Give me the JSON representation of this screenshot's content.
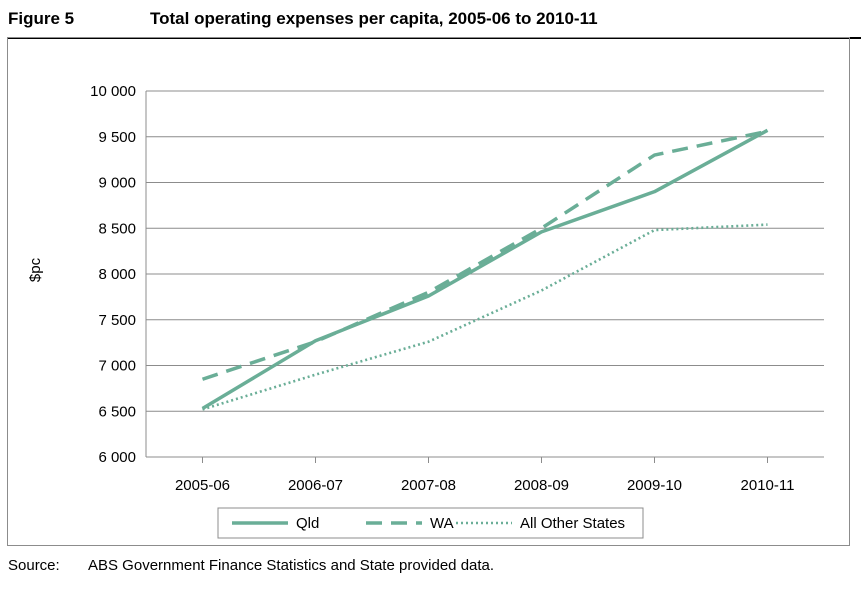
{
  "figure": {
    "label": "Figure 5",
    "title": "Total operating expenses per capita, 2005-06 to 2010-11"
  },
  "source": {
    "label": "Source:",
    "text": "ABS Government Finance Statistics and State provided data."
  },
  "colors": {
    "series": "#6aae97",
    "grid": "#8c8c8c",
    "axis": "#8c8c8c"
  },
  "chart_data": {
    "type": "line",
    "title": "Total operating expenses per capita, 2005-06 to 2010-11",
    "xlabel": "",
    "ylabel": "$pc",
    "categories": [
      "2005-06",
      "2006-07",
      "2007-08",
      "2008-09",
      "2009-10",
      "2010-11"
    ],
    "ylim": [
      6000,
      10000
    ],
    "yticks": [
      6000,
      6500,
      7000,
      7500,
      8000,
      8500,
      9000,
      9500,
      10000
    ],
    "ytick_labels": [
      "6 000",
      "6 500",
      "7 000",
      "7 500",
      "8 000",
      "8 500",
      "9 000",
      "9 500",
      "10 000"
    ],
    "grid": true,
    "legend": "bottom",
    "series": [
      {
        "name": "Qld",
        "style": "solid",
        "values": [
          6530,
          7270,
          7760,
          8460,
          8900,
          9570
        ]
      },
      {
        "name": "WA",
        "style": "dashed",
        "values": [
          6850,
          7260,
          7800,
          8500,
          9300,
          9560
        ]
      },
      {
        "name": "All Other States",
        "style": "dotted",
        "values": [
          6520,
          6900,
          7260,
          7820,
          8480,
          8540
        ]
      }
    ]
  }
}
